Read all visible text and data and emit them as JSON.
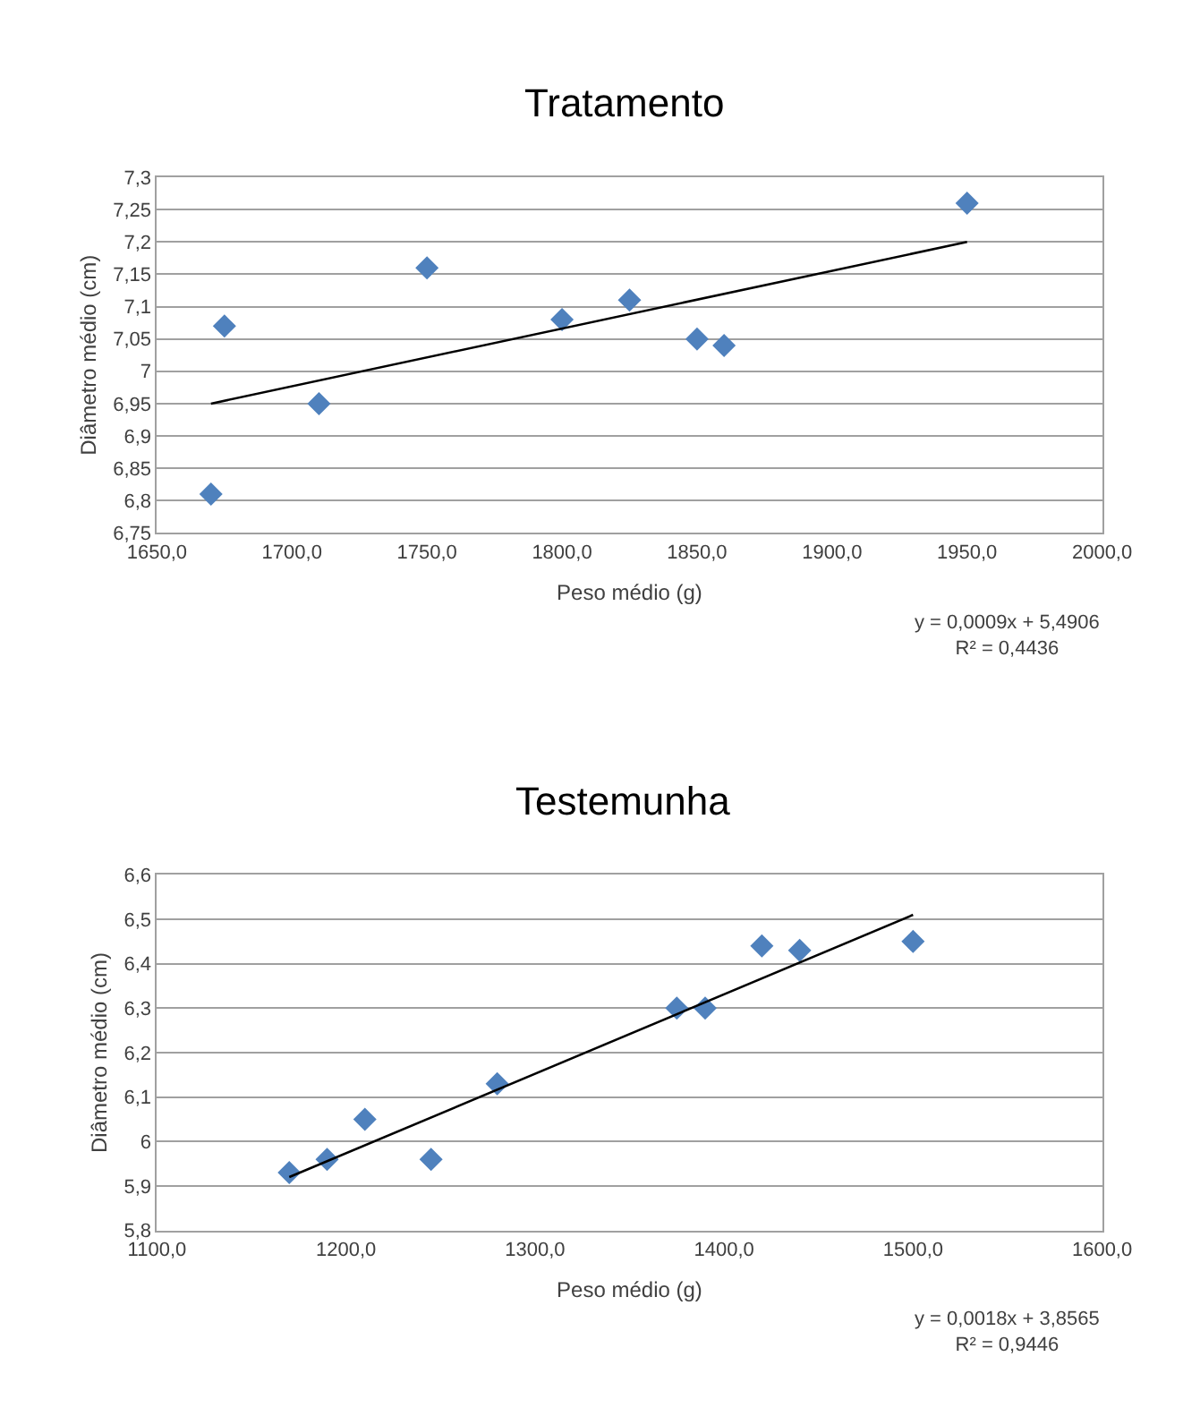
{
  "chart_data": [
    {
      "type": "scatter",
      "title": "Tratamento",
      "xlabel": "Peso médio (g)",
      "ylabel": "Diâmetro médio (cm)",
      "grid": "y",
      "series": [
        {
          "marker": "diamond",
          "color": "#4f81bd",
          "x": [
            1670,
            1675,
            1710,
            1750,
            1800,
            1825,
            1850,
            1860,
            1950
          ],
          "values": [
            6.81,
            7.07,
            6.95,
            7.16,
            7.08,
            7.11,
            7.05,
            7.04,
            7.26
          ]
        },
        {
          "type": "line",
          "color": "#000000",
          "x": [
            1670,
            1950
          ],
          "values": [
            6.95,
            7.2
          ]
        }
      ],
      "xlim": [
        1650,
        2000
      ],
      "xticks": [
        {
          "value": 1650,
          "label": "1650,0"
        },
        {
          "value": 1700,
          "label": "1700,0"
        },
        {
          "value": 1750,
          "label": "1750,0"
        },
        {
          "value": 1800,
          "label": "1800,0"
        },
        {
          "value": 1850,
          "label": "1850,0"
        },
        {
          "value": 1900,
          "label": "1900,0"
        },
        {
          "value": 1950,
          "label": "1950,0"
        },
        {
          "value": 2000,
          "label": "2000,0"
        }
      ],
      "ylim": [
        6.75,
        7.3
      ],
      "yticks": [
        {
          "value": 6.75,
          "label": "6,75"
        },
        {
          "value": 6.8,
          "label": "6,8"
        },
        {
          "value": 6.85,
          "label": "6,85"
        },
        {
          "value": 6.9,
          "label": "6,9"
        },
        {
          "value": 6.95,
          "label": "6,95"
        },
        {
          "value": 7,
          "label": "7"
        },
        {
          "value": 7.05,
          "label": "7,05"
        },
        {
          "value": 7.1,
          "label": "7,1"
        },
        {
          "value": 7.15,
          "label": "7,15"
        },
        {
          "value": 7.2,
          "label": "7,2"
        },
        {
          "value": 7.25,
          "label": "7,25"
        },
        {
          "value": 7.3,
          "label": "7,3"
        }
      ],
      "annotations": [
        "y = 0,0009x + 5,4906\nR² = 0,4436"
      ]
    },
    {
      "type": "scatter",
      "title": "Testemunha",
      "xlabel": "Peso médio (g)",
      "ylabel": "Diâmetro médio (cm)",
      "grid": "y",
      "series": [
        {
          "marker": "diamond",
          "color": "#4f81bd",
          "x": [
            1170,
            1190,
            1210,
            1245,
            1280,
            1375,
            1390,
            1420,
            1440,
            1500
          ],
          "values": [
            5.93,
            5.96,
            6.05,
            5.96,
            6.13,
            6.3,
            6.3,
            6.44,
            6.43,
            6.45
          ]
        },
        {
          "type": "line",
          "color": "#000000",
          "x": [
            1170,
            1500
          ],
          "values": [
            5.92,
            6.51
          ]
        }
      ],
      "xlim": [
        1100,
        1600
      ],
      "xticks": [
        {
          "value": 1100,
          "label": "1100,0"
        },
        {
          "value": 1200,
          "label": "1200,0"
        },
        {
          "value": 1300,
          "label": "1300,0"
        },
        {
          "value": 1400,
          "label": "1400,0"
        },
        {
          "value": 1500,
          "label": "1500,0"
        },
        {
          "value": 1600,
          "label": "1600,0"
        }
      ],
      "ylim": [
        5.8,
        6.6
      ],
      "yticks": [
        {
          "value": 5.8,
          "label": "5,8"
        },
        {
          "value": 5.9,
          "label": "5,9"
        },
        {
          "value": 6,
          "label": "6"
        },
        {
          "value": 6.1,
          "label": "6,1"
        },
        {
          "value": 6.2,
          "label": "6,2"
        },
        {
          "value": 6.3,
          "label": "6,3"
        },
        {
          "value": 6.4,
          "label": "6,4"
        },
        {
          "value": 6.5,
          "label": "6,5"
        },
        {
          "value": 6.6,
          "label": "6,6"
        }
      ],
      "annotations": [
        "y = 0,0018x + 3,8565\nR² = 0,9446"
      ]
    }
  ]
}
